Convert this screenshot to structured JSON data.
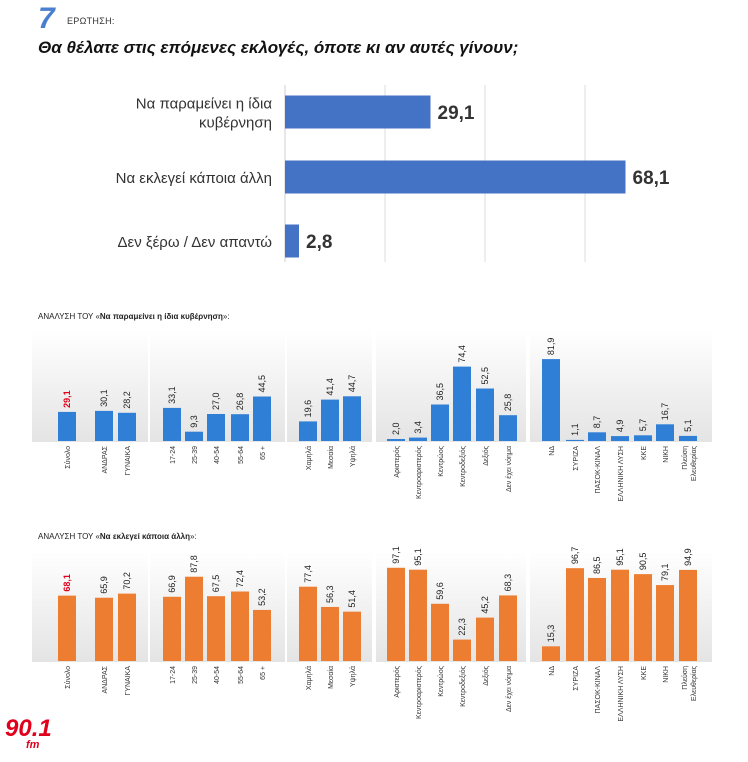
{
  "header": {
    "question_number": "7",
    "question_label": "ΕΡΩΤΗΣΗ:",
    "question_text": "Θα θέλατε στις επόμενες εκλογές, όποτε κι αν αυτές γίνουν;"
  },
  "sections": {
    "blue_prefix": "ΑΝΑΛΥΣΗ ΤΟΥ «",
    "blue_name": "Να παραμείνει η ίδια κυβέρνηση",
    "blue_suffix": "»:",
    "orange_prefix": "ΑΝΑΛΥΣΗ ΤΟΥ «",
    "orange_name": "Να εκλεγεί κάποια άλλη",
    "orange_suffix": "»:"
  },
  "logo": {
    "main": "90.1",
    "sub": "fm",
    "color": "#e0001b"
  },
  "colors": {
    "blue": "#4472c4",
    "blue_mid": "#2f7fd6",
    "orange": "#ed7d31",
    "highlight": "#e3001b"
  },
  "chart_data": [
    {
      "type": "bar",
      "orientation": "horizontal",
      "categories": [
        [
          "Να παραμείνει η ίδια",
          "κυβέρνηση"
        ],
        [
          "Να εκλεγεί κάποια άλλη"
        ],
        [
          "Δεν ξέρω / Δεν απαντώ"
        ]
      ],
      "values": [
        29.1,
        68.1,
        2.8
      ],
      "value_labels": [
        "29,1",
        "68,1",
        "2,8"
      ],
      "xlim": [
        0,
        80
      ]
    },
    {
      "type": "bar",
      "title": "Να παραμείνει η ίδια κυβέρνηση",
      "groups": [
        {
          "categories": [
            "Σύνολο"
          ],
          "values": [
            29.1
          ],
          "labels": [
            "29,1"
          ]
        },
        {
          "categories": [
            "ΑΝΔΡΑΣ",
            "ΓΥΝΑΙΚΑ"
          ],
          "values": [
            30.1,
            28.2
          ],
          "labels": [
            "30,1",
            "28,2"
          ]
        },
        {
          "categories": [
            "17-24",
            "25-39",
            "40-54",
            "55-64",
            "65 +"
          ],
          "values": [
            33.1,
            9.3,
            27.0,
            26.8,
            44.5
          ],
          "labels": [
            "33,1",
            "9,3",
            "27,0",
            "26,8",
            "44,5"
          ]
        },
        {
          "categories": [
            "Χαμηλά",
            "Μεσαία",
            "Υψηλά"
          ],
          "values": [
            19.6,
            41.4,
            44.7
          ],
          "labels": [
            "19,6",
            "41,4",
            "44,7"
          ]
        },
        {
          "categories": [
            "Αριστερός",
            "Κεντροαριστερός",
            "Κεντρώος",
            "Κεντροδεξιός",
            "Δεξιός",
            "Δεν έχει νόημα"
          ],
          "values": [
            2.0,
            3.4,
            36.5,
            74.4,
            52.5,
            25.8
          ],
          "labels": [
            "2,0",
            "3,4",
            "36,5",
            "74,4",
            "52,5",
            "25,8"
          ]
        },
        {
          "categories": [
            "ΝΔ",
            "ΣΥΡΙΖΑ",
            "ΠΑΣΟΚ-ΚΙΝΑΛ",
            "ΕΛΛΗΝΙΚΗ ΛΥΣΗ",
            "ΚΚΕ",
            "ΝΙΚΗ",
            "Πλεύση Ελευθερίας"
          ],
          "values": [
            81.9,
            1.1,
            8.7,
            4.9,
            5.7,
            16.7,
            5.1
          ],
          "labels": [
            "81,9",
            "1,1",
            "8,7",
            "4,9",
            "5,7",
            "16,7",
            "5,1"
          ]
        }
      ],
      "ylim": [
        0,
        100
      ]
    },
    {
      "type": "bar",
      "title": "Να εκλεγεί κάποια άλλη",
      "groups": [
        {
          "categories": [
            "Σύνολο"
          ],
          "values": [
            68.1
          ],
          "labels": [
            "68,1"
          ]
        },
        {
          "categories": [
            "ΑΝΔΡΑΣ",
            "ΓΥΝΑΙΚΑ"
          ],
          "values": [
            65.9,
            70.2
          ],
          "labels": [
            "65,9",
            "70,2"
          ]
        },
        {
          "categories": [
            "17-24",
            "25-39",
            "40-54",
            "55-64",
            "65 +"
          ],
          "values": [
            66.9,
            87.8,
            67.5,
            72.4,
            53.2
          ],
          "labels": [
            "66,9",
            "87,8",
            "67,5",
            "72,4",
            "53,2"
          ]
        },
        {
          "categories": [
            "Χαμηλά",
            "Μεσαία",
            "Υψηλά"
          ],
          "values": [
            77.4,
            56.3,
            51.4
          ],
          "labels": [
            "77,4",
            "56,3",
            "51,4"
          ]
        },
        {
          "categories": [
            "Αριστερός",
            "Κεντροαριστερός",
            "Κεντρώος",
            "Κεντροδεξιός",
            "Δεξιός",
            "Δεν έχει νόημα"
          ],
          "values": [
            97.1,
            95.1,
            59.6,
            22.3,
            45.2,
            68.3
          ],
          "labels": [
            "97,1",
            "95,1",
            "59,6",
            "22,3",
            "45,2",
            "68,3"
          ]
        },
        {
          "categories": [
            "ΝΔ",
            "ΣΥΡΙΖΑ",
            "ΠΑΣΟΚ-ΚΙΝΑΛ",
            "ΕΛΛΗΝΙΚΗ ΛΥΣΗ",
            "ΚΚΕ",
            "ΝΙΚΗ",
            "Πλεύση Ελευθερίας"
          ],
          "values": [
            15.3,
            96.7,
            86.5,
            95.1,
            90.5,
            79.1,
            94.9
          ],
          "labels": [
            "15,3",
            "96,7",
            "86,5",
            "95,1",
            "90,5",
            "79,1",
            "94,9"
          ]
        }
      ],
      "ylim": [
        0,
        100
      ]
    }
  ]
}
